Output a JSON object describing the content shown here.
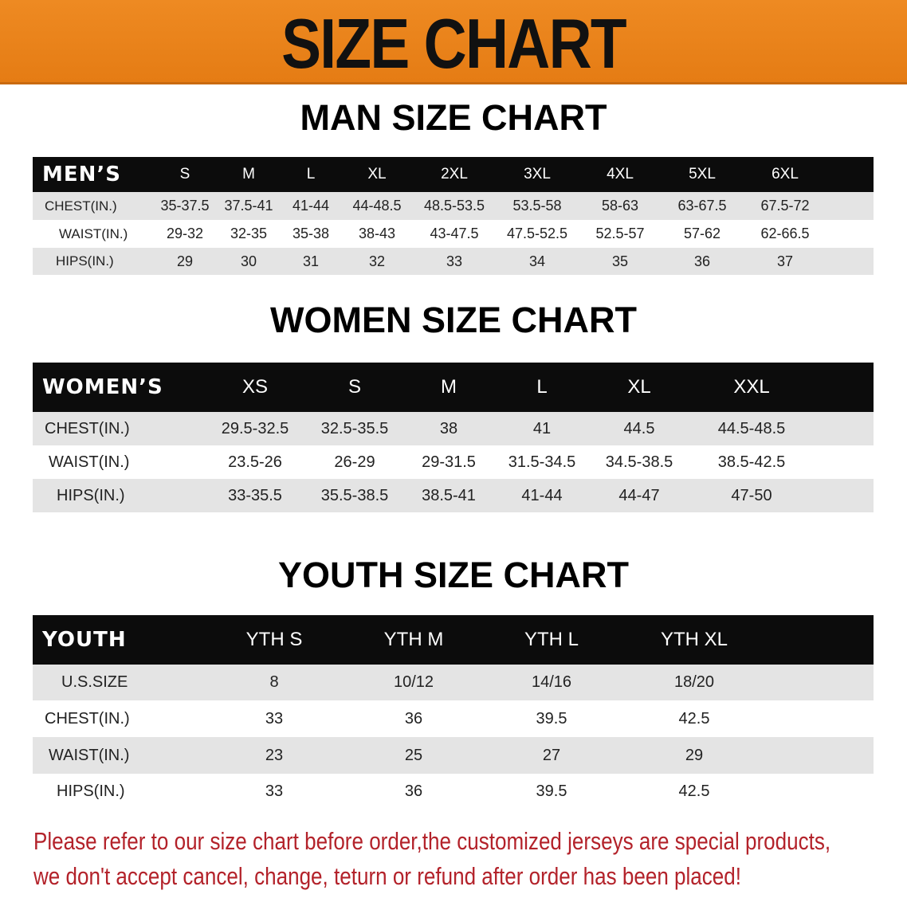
{
  "header": {
    "title": "SIZE CHART",
    "color": "#e8811a"
  },
  "men": {
    "title": "MAN SIZE CHART",
    "columns": [
      "MEN’S",
      "S",
      "M",
      "L",
      "XL",
      "2XL",
      "3XL",
      "4XL",
      "5XL",
      "6XL"
    ],
    "rows": [
      [
        "CHEST(IN.)",
        "35-37.5",
        "37.5-41",
        "41-44",
        "44-48.5",
        "48.5-53.5",
        "53.5-58",
        "58-63",
        "63-67.5",
        "67.5-72"
      ],
      [
        "WAIST(IN.)",
        "29-32",
        "32-35",
        "35-38",
        "38-43",
        "43-47.5",
        "47.5-52.5",
        "52.5-57",
        "57-62",
        "62-66.5"
      ],
      [
        "HIPS(IN.)",
        "29",
        "30",
        "31",
        "32",
        "33",
        "34",
        "35",
        "36",
        "37"
      ]
    ]
  },
  "women": {
    "title": "WOMEN SIZE CHART",
    "columns": [
      "WOMEN’S",
      "XS",
      "S",
      "M",
      "L",
      "XL",
      "XXL"
    ],
    "rows": [
      [
        "CHEST(IN.)",
        "29.5-32.5",
        "32.5-35.5",
        "38",
        "41",
        "44.5",
        "44.5-48.5"
      ],
      [
        "WAIST(IN.)",
        "23.5-26",
        "26-29",
        "29-31.5",
        "31.5-34.5",
        "34.5-38.5",
        "38.5-42.5"
      ],
      [
        "HIPS(IN.)",
        "33-35.5",
        "35.5-38.5",
        "38.5-41",
        "41-44",
        "44-47",
        "47-50"
      ]
    ]
  },
  "youth": {
    "title": "YOUTH SIZE CHART",
    "columns": [
      "YOUTH",
      "YTH S",
      "YTH M",
      "YTH L",
      "YTH XL"
    ],
    "rows": [
      [
        "U.S.SIZE",
        "8",
        "10/12",
        "14/16",
        "18/20"
      ],
      [
        "CHEST(IN.)",
        "33",
        "36",
        "39.5",
        "42.5"
      ],
      [
        "WAIST(IN.)",
        "23",
        "25",
        "27",
        "29"
      ],
      [
        "HIPS(IN.)",
        "33",
        "36",
        "39.5",
        "42.5"
      ]
    ]
  },
  "notice": {
    "line1": "Please refer to our size chart before order,the customized jerseys are special products,",
    "line2": "we don't accept cancel, change, teturn or refund after order has been placed!",
    "color": "#b3222a"
  }
}
